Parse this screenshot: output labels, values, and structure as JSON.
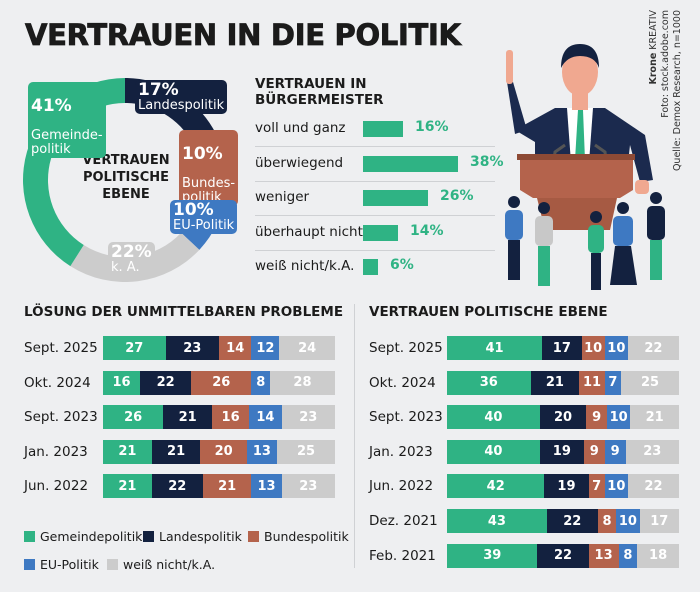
{
  "title": "VERTRAUEN IN DIE POLITIK",
  "credits": {
    "line1_bold": "Krone",
    "line1_rest": " KREATIV",
    "line2": "Foto: stock.adobe.com",
    "line3": "Quelle: Demox Research, n=1000"
  },
  "colors": {
    "gemeinde": "#2fb384",
    "landes": "#13213f",
    "bundes": "#b4634c",
    "eu": "#3e79c2",
    "ka": "#cccccc"
  },
  "chart_data": [
    {
      "type": "pie",
      "variant": "donut",
      "title": "VERTRAUEN POLITISCHE EBENE",
      "center_lines": [
        "VERTRAUEN",
        "POLITISCHE",
        "EBENE"
      ],
      "slices": [
        {
          "key": "landes",
          "pct_label": "17%",
          "name": "Landespolitik",
          "value": 17
        },
        {
          "key": "bundes",
          "pct_label": "10%",
          "name": "Bundes-\npolitik",
          "value": 10
        },
        {
          "key": "eu",
          "pct_label": "10%",
          "name": "EU-Politik",
          "value": 10
        },
        {
          "key": "ka",
          "pct_label": "22%",
          "name": "k. A.",
          "value": 22
        },
        {
          "key": "gemeinde",
          "pct_label": "41%",
          "name": "Gemeinde-\npolitik",
          "value": 41
        }
      ]
    },
    {
      "type": "bar",
      "orientation": "horizontal",
      "title_lines": [
        "VERTRAUEN IN",
        "BÜRGERMEISTER"
      ],
      "categories": [
        "voll und ganz",
        "überwiegend",
        "weniger",
        "überhaupt nicht",
        "weiß nicht/k.A."
      ],
      "values": [
        16,
        38,
        26,
        14,
        6
      ],
      "value_labels": [
        "16%",
        "38%",
        "26%",
        "14%",
        "6%"
      ],
      "unit": "%"
    },
    {
      "type": "bar",
      "stacked": true,
      "orientation": "horizontal",
      "title": "LÖSUNG DER UNMITTELBAREN PROBLEME",
      "categories": [
        "Sept. 2025",
        "Okt. 2024",
        "Sept. 2023",
        "Jan. 2023",
        "Jun. 2022"
      ],
      "series": [
        {
          "key": "gemeinde",
          "name": "Gemeindepolitik",
          "values": [
            27,
            16,
            26,
            21,
            21
          ]
        },
        {
          "key": "landes",
          "name": "Landespolitik",
          "values": [
            23,
            22,
            21,
            21,
            22
          ]
        },
        {
          "key": "bundes",
          "name": "Bundespolitik",
          "values": [
            14,
            26,
            16,
            20,
            21
          ]
        },
        {
          "key": "eu",
          "name": "EU-Politik",
          "values": [
            12,
            8,
            14,
            13,
            13
          ]
        },
        {
          "key": "ka",
          "name": "weiß nicht/k.A.",
          "values": [
            24,
            28,
            23,
            25,
            23
          ]
        }
      ],
      "legend": "bottom"
    },
    {
      "type": "bar",
      "stacked": true,
      "orientation": "horizontal",
      "title": "VERTRAUEN POLITISCHE EBENE",
      "categories": [
        "Sept. 2025",
        "Okt. 2024",
        "Sept. 2023",
        "Jan. 2023",
        "Jun. 2022",
        "Dez. 2021",
        "Feb. 2021"
      ],
      "series": [
        {
          "key": "gemeinde",
          "name": "Gemeindepolitik",
          "values": [
            41,
            36,
            40,
            40,
            42,
            43,
            39
          ]
        },
        {
          "key": "landes",
          "name": "Landespolitik",
          "values": [
            17,
            21,
            20,
            19,
            19,
            22,
            22
          ]
        },
        {
          "key": "bundes",
          "name": "Bundespolitik",
          "values": [
            10,
            11,
            9,
            9,
            7,
            8,
            13
          ]
        },
        {
          "key": "eu",
          "name": "EU-Politik",
          "values": [
            10,
            7,
            10,
            9,
            10,
            10,
            8
          ]
        },
        {
          "key": "ka",
          "name": "weiß nicht/k.A.",
          "values": [
            22,
            25,
            21,
            23,
            22,
            17,
            18
          ]
        }
      ]
    }
  ],
  "legend": [
    {
      "key": "gemeinde",
      "label": "Gemeindepolitik"
    },
    {
      "key": "landes",
      "label": "Landespolitik"
    },
    {
      "key": "bundes",
      "label": "Bundespolitik"
    },
    {
      "key": "eu",
      "label": "EU-Politik"
    },
    {
      "key": "ka",
      "label": "weiß nicht/k.A."
    }
  ],
  "illustration": {
    "icon": "politician-at-podium-with-crowd-illustration"
  }
}
